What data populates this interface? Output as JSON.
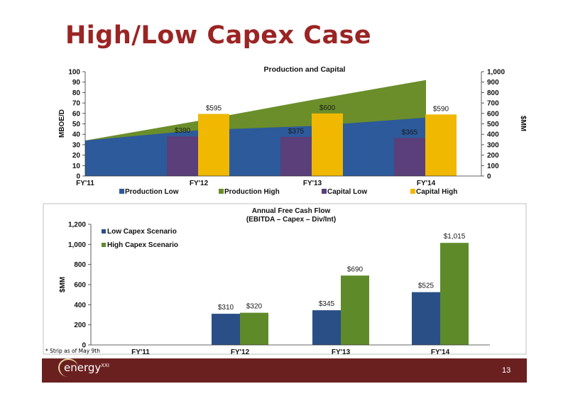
{
  "slide": {
    "title": "High/Low Capex Case",
    "footnote": "* Strip as of May 9th",
    "page_number": "13",
    "logo_text": "energy",
    "logo_suffix": "XXI"
  },
  "colors": {
    "title": "#9b2424",
    "footer": "#6b2020",
    "production_low": "#2d5a9a",
    "production_high": "#6b8e2a",
    "capital_low": "#5a3f7a",
    "capital_high": "#f0b800",
    "low_capex": "#2a4f86",
    "high_capex": "#5f8a2a"
  },
  "chart_data": [
    {
      "type": "bar",
      "subtype": "area-with-bars",
      "title": "Production and Capital",
      "categories": [
        "FY'11",
        "FY'12",
        "FY'13",
        "FY'14"
      ],
      "ylabel": "MBOE/D",
      "y2label": "$MM",
      "ylim": [
        0,
        100
      ],
      "y2lim": [
        0,
        1000
      ],
      "yticks": [
        "0",
        "10",
        "20",
        "30",
        "40",
        "50",
        "60",
        "70",
        "80",
        "90",
        "100"
      ],
      "y2ticks": [
        "0",
        "100",
        "200",
        "300",
        "400",
        "500",
        "600",
        "700",
        "800",
        "900",
        "1,000"
      ],
      "series": [
        {
          "name": "Production Low",
          "type": "area",
          "axis": "left",
          "values": [
            34,
            44,
            48,
            56
          ]
        },
        {
          "name": "Production High",
          "type": "area",
          "axis": "left",
          "values": [
            34,
            53,
            73,
            92
          ]
        },
        {
          "name": "Capital Low",
          "type": "bar",
          "axis": "right",
          "values": [
            null,
            380,
            375,
            365
          ],
          "labels": [
            "",
            "$380",
            "$375",
            "$365"
          ]
        },
        {
          "name": "Capital High",
          "type": "bar",
          "axis": "right",
          "values": [
            null,
            595,
            600,
            590
          ],
          "labels": [
            "",
            "$595",
            "$600",
            "$590"
          ]
        }
      ],
      "grid": false,
      "legend": "bottom"
    },
    {
      "type": "bar",
      "title": "Annual Free Cash Flow",
      "subtitle": "(EBITDA – Capex – Div/Int)",
      "categories": [
        "FY'11",
        "FY'12",
        "FY'13",
        "FY'14"
      ],
      "ylabel": "$MM",
      "ylim": [
        0,
        1200
      ],
      "yticks": [
        "0",
        "200",
        "400",
        "600",
        "800",
        "1,000",
        "1,200"
      ],
      "series": [
        {
          "name": "Low Capex Scenario",
          "values": [
            null,
            310,
            345,
            525
          ],
          "labels": [
            "",
            "$310",
            "$345",
            "$525"
          ]
        },
        {
          "name": "High Capex Scenario",
          "values": [
            null,
            320,
            690,
            1015
          ],
          "labels": [
            "",
            "$320",
            "$690",
            "$1,015"
          ]
        }
      ],
      "grid": false,
      "legend": "top-left"
    }
  ]
}
